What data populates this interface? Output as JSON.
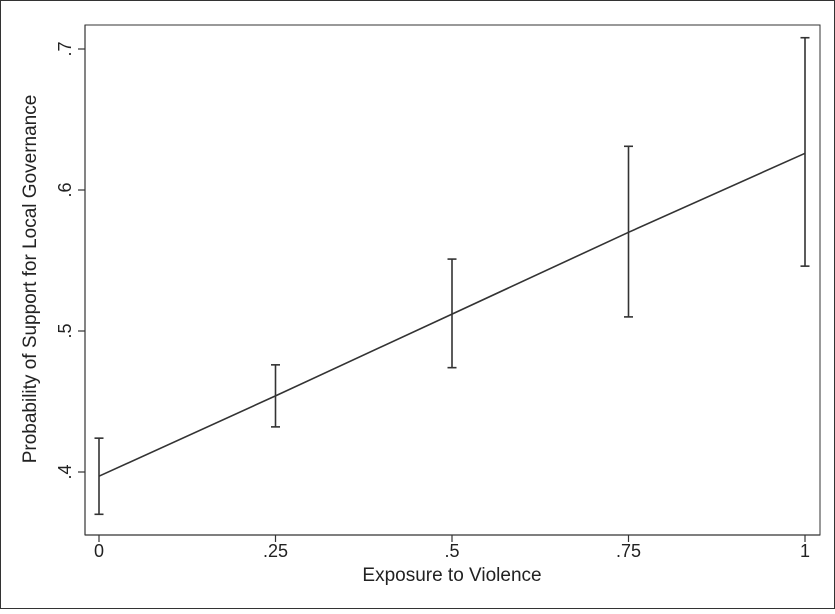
{
  "chart_data": {
    "type": "line",
    "title": "",
    "xlabel": "Exposure to Violence",
    "ylabel": "Probability of Support for Local Governance",
    "xlim": [
      0,
      1
    ],
    "ylim": [
      0.36,
      0.715
    ],
    "x_ticks": [
      {
        "value": 0,
        "label": "0"
      },
      {
        "value": 0.25,
        "label": ".25"
      },
      {
        "value": 0.5,
        "label": ".5"
      },
      {
        "value": 0.75,
        "label": ".75"
      },
      {
        "value": 1,
        "label": "1"
      }
    ],
    "y_ticks": [
      {
        "value": 0.4,
        "label": ".4"
      },
      {
        "value": 0.5,
        "label": ".5"
      },
      {
        "value": 0.6,
        "label": ".6"
      },
      {
        "value": 0.7,
        "label": ".7"
      }
    ],
    "grid": false,
    "legend": "none",
    "series": [
      {
        "x": [
          0,
          0.25,
          0.5,
          0.75,
          1
        ],
        "y": [
          0.397,
          0.454,
          0.512,
          0.57,
          0.626
        ],
        "lower": [
          0.37,
          0.432,
          0.474,
          0.51,
          0.546
        ],
        "upper": [
          0.424,
          0.476,
          0.551,
          0.631,
          0.708
        ]
      }
    ],
    "colors": {
      "line": "#333333",
      "axis": "#333333",
      "text": "#222222"
    }
  }
}
